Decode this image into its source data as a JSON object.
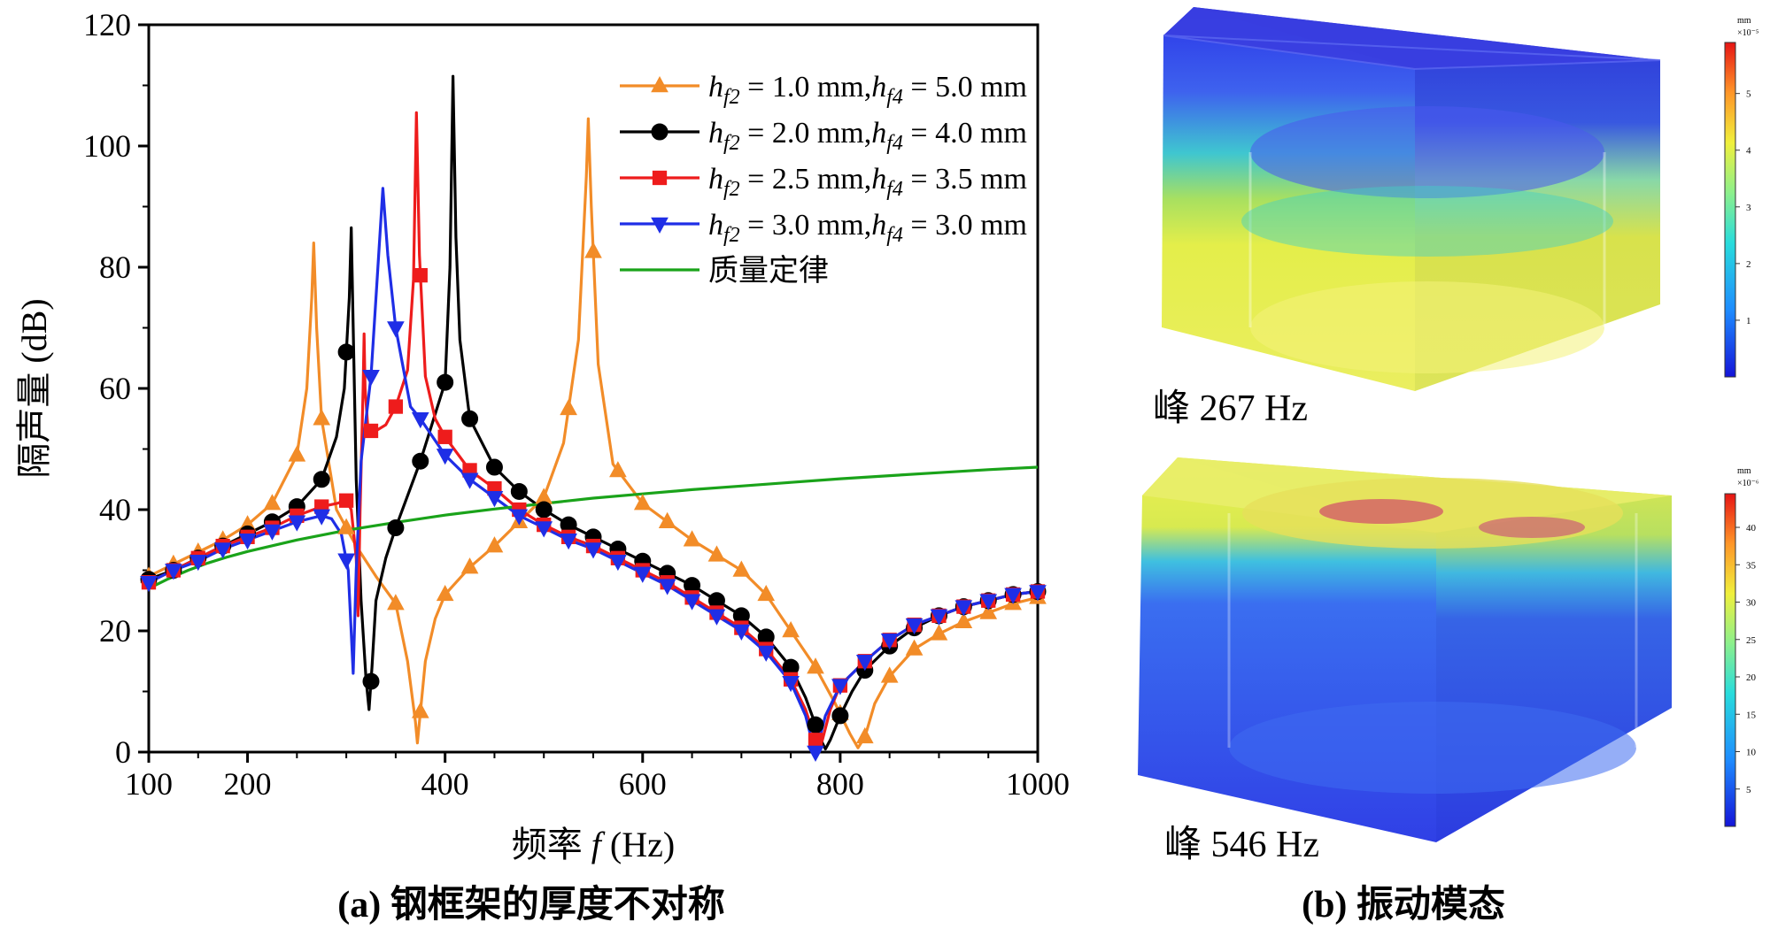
{
  "panel_a": {
    "caption": "(a) 钢框架的厚度不对称"
  },
  "panel_b": {
    "caption": "(b) 振动模态",
    "modes": [
      {
        "label": "峰 267 Hz",
        "colorbar_unit": "mm",
        "colorbar_exponent": "×10⁻⁵",
        "colorbar_ticks": [
          "1",
          "2",
          "3",
          "4",
          "5"
        ]
      },
      {
        "label": "峰 546 Hz",
        "colorbar_unit": "mm",
        "colorbar_exponent": "×10⁻⁶",
        "colorbar_ticks": [
          "5",
          "10",
          "15",
          "20",
          "25",
          "30",
          "35",
          "40"
        ]
      }
    ]
  },
  "chart_data": {
    "type": "line",
    "title": "",
    "xlabel_prefix": "频率 ",
    "xlabel_var": "f",
    "xlabel_suffix": " (Hz)",
    "ylabel": "隔声量 (dB)",
    "xlim": [
      100,
      1000
    ],
    "ylim": [
      0,
      120
    ],
    "xticks": [
      100,
      200,
      400,
      600,
      800,
      1000
    ],
    "yticks": [
      0,
      20,
      40,
      60,
      80,
      100,
      120
    ],
    "grid": false,
    "legend_position": "top-right",
    "series": [
      {
        "name": "hf2 = 1.0 mm, hf4 = 5.0 mm",
        "legend": {
          "a": "1.0",
          "b": "5.0"
        },
        "color": "#f28c28",
        "marker": "triangle-up",
        "points": [
          [
            100,
            29
          ],
          [
            125,
            31
          ],
          [
            150,
            33
          ],
          [
            175,
            35
          ],
          [
            200,
            37.5
          ],
          [
            225,
            41
          ],
          [
            250,
            49
          ],
          [
            260,
            60
          ],
          [
            265,
            75
          ],
          [
            267,
            84
          ],
          [
            270,
            70
          ],
          [
            275,
            55
          ],
          [
            290,
            40
          ],
          [
            310,
            34
          ],
          [
            330,
            29
          ],
          [
            350,
            24.5
          ],
          [
            362,
            15
          ],
          [
            370,
            5
          ],
          [
            372,
            1.5
          ],
          [
            374,
            5
          ],
          [
            380,
            15
          ],
          [
            390,
            22
          ],
          [
            400,
            26
          ],
          [
            425,
            30.5
          ],
          [
            450,
            34
          ],
          [
            475,
            38
          ],
          [
            500,
            42
          ],
          [
            520,
            51
          ],
          [
            535,
            68
          ],
          [
            543,
            95
          ],
          [
            545,
            104.5
          ],
          [
            548,
            90
          ],
          [
            555,
            64
          ],
          [
            570,
            47.5
          ],
          [
            600,
            41
          ],
          [
            625,
            38
          ],
          [
            650,
            35
          ],
          [
            675,
            32.5
          ],
          [
            700,
            30
          ],
          [
            725,
            26
          ],
          [
            750,
            20
          ],
          [
            775,
            14
          ],
          [
            795,
            8
          ],
          [
            810,
            3
          ],
          [
            818,
            0.7
          ],
          [
            825,
            2.5
          ],
          [
            835,
            8
          ],
          [
            850,
            12.5
          ],
          [
            875,
            17
          ],
          [
            900,
            19.5
          ],
          [
            925,
            21.5
          ],
          [
            950,
            23
          ],
          [
            975,
            24.5
          ],
          [
            1000,
            25.5
          ]
        ],
        "marker_x": [
          100,
          125,
          150,
          175,
          200,
          225,
          250,
          275,
          300,
          350,
          375,
          400,
          425,
          450,
          475,
          500,
          525,
          550,
          575,
          600,
          625,
          650,
          675,
          700,
          725,
          750,
          775,
          800,
          825,
          850,
          875,
          900,
          925,
          950,
          975,
          1000
        ]
      },
      {
        "name": "hf2 = 2.0 mm, hf4 = 4.0 mm",
        "legend": {
          "a": "2.0",
          "b": "4.0"
        },
        "color": "#000000",
        "marker": "circle",
        "points": [
          [
            100,
            28.5
          ],
          [
            125,
            30
          ],
          [
            150,
            32
          ],
          [
            175,
            34
          ],
          [
            200,
            36
          ],
          [
            225,
            38
          ],
          [
            250,
            40.5
          ],
          [
            275,
            45
          ],
          [
            290,
            52
          ],
          [
            298,
            60
          ],
          [
            303,
            75
          ],
          [
            305,
            86.5
          ],
          [
            307,
            70
          ],
          [
            310,
            45
          ],
          [
            315,
            25
          ],
          [
            320,
            12
          ],
          [
            323,
            7
          ],
          [
            326,
            14
          ],
          [
            330,
            25
          ],
          [
            340,
            32
          ],
          [
            350,
            37
          ],
          [
            375,
            48
          ],
          [
            400,
            61
          ],
          [
            405,
            80
          ],
          [
            408,
            111.5
          ],
          [
            411,
            85
          ],
          [
            415,
            68
          ],
          [
            425,
            55
          ],
          [
            450,
            47
          ],
          [
            475,
            43
          ],
          [
            500,
            40
          ],
          [
            525,
            37.5
          ],
          [
            550,
            35.5
          ],
          [
            575,
            33.5
          ],
          [
            600,
            31.5
          ],
          [
            625,
            29.5
          ],
          [
            650,
            27.5
          ],
          [
            675,
            25
          ],
          [
            700,
            22.5
          ],
          [
            725,
            19
          ],
          [
            750,
            14
          ],
          [
            765,
            9
          ],
          [
            775,
            4.5
          ],
          [
            782,
            1.5
          ],
          [
            785,
            0.5
          ],
          [
            790,
            2
          ],
          [
            800,
            6
          ],
          [
            812,
            10
          ],
          [
            825,
            13.5
          ],
          [
            850,
            17.5
          ],
          [
            875,
            20.5
          ],
          [
            900,
            22.5
          ],
          [
            925,
            24
          ],
          [
            950,
            25
          ],
          [
            975,
            26
          ],
          [
            1000,
            26.5
          ]
        ],
        "marker_x": [
          100,
          125,
          150,
          175,
          200,
          225,
          250,
          275,
          300,
          325,
          350,
          375,
          400,
          425,
          450,
          475,
          500,
          525,
          550,
          575,
          600,
          625,
          650,
          675,
          700,
          725,
          750,
          775,
          800,
          825,
          850,
          875,
          900,
          925,
          950,
          975,
          1000
        ]
      },
      {
        "name": "hf2 = 2.5 mm, hf4 = 3.5 mm",
        "legend": {
          "a": "2.5",
          "b": "3.5"
        },
        "color": "#ee1c1c",
        "marker": "square",
        "points": [
          [
            100,
            28
          ],
          [
            125,
            30
          ],
          [
            150,
            32
          ],
          [
            175,
            34
          ],
          [
            200,
            35.5
          ],
          [
            225,
            37
          ],
          [
            250,
            39
          ],
          [
            275,
            40.5
          ],
          [
            290,
            41
          ],
          [
            300,
            41.5
          ],
          [
            305,
            40
          ],
          [
            310,
            32
          ],
          [
            312,
            22.5
          ],
          [
            314,
            40
          ],
          [
            317,
            60
          ],
          [
            318,
            69
          ],
          [
            319,
            60
          ],
          [
            322,
            53
          ],
          [
            330,
            53
          ],
          [
            340,
            54
          ],
          [
            350,
            57
          ],
          [
            362,
            63
          ],
          [
            368,
            78
          ],
          [
            371,
            105.5
          ],
          [
            374,
            82
          ],
          [
            380,
            62
          ],
          [
            390,
            55
          ],
          [
            400,
            52
          ],
          [
            425,
            46.5
          ],
          [
            450,
            43.5
          ],
          [
            475,
            40
          ],
          [
            500,
            37.5
          ],
          [
            525,
            35.5
          ],
          [
            550,
            34
          ],
          [
            575,
            32
          ],
          [
            600,
            30
          ],
          [
            625,
            28
          ],
          [
            650,
            25.5
          ],
          [
            675,
            23
          ],
          [
            700,
            20.5
          ],
          [
            725,
            17
          ],
          [
            750,
            12
          ],
          [
            765,
            7
          ],
          [
            775,
            2
          ],
          [
            778,
            0.5
          ],
          [
            782,
            2
          ],
          [
            790,
            7
          ],
          [
            800,
            11
          ],
          [
            825,
            15
          ],
          [
            850,
            18.5
          ],
          [
            875,
            21
          ],
          [
            900,
            22.5
          ],
          [
            925,
            24
          ],
          [
            950,
            25
          ],
          [
            975,
            26
          ],
          [
            1000,
            26.5
          ]
        ],
        "marker_x": [
          100,
          125,
          150,
          175,
          200,
          225,
          250,
          275,
          300,
          325,
          350,
          375,
          400,
          425,
          450,
          475,
          500,
          525,
          550,
          575,
          600,
          625,
          650,
          675,
          700,
          725,
          750,
          775,
          800,
          825,
          850,
          875,
          900,
          925,
          950,
          975,
          1000
        ]
      },
      {
        "name": "hf2 = 3.0 mm, hf4 = 3.0 mm",
        "legend": {
          "a": "3.0",
          "b": "3.0"
        },
        "color": "#1f2ee6",
        "marker": "triangle-down",
        "points": [
          [
            100,
            28
          ],
          [
            125,
            30
          ],
          [
            150,
            31.5
          ],
          [
            175,
            33.5
          ],
          [
            200,
            35
          ],
          [
            225,
            36.5
          ],
          [
            250,
            38
          ],
          [
            275,
            39
          ],
          [
            285,
            38.5
          ],
          [
            295,
            36
          ],
          [
            302,
            30
          ],
          [
            307,
            13
          ],
          [
            310,
            30
          ],
          [
            315,
            48
          ],
          [
            325,
            62
          ],
          [
            332,
            80
          ],
          [
            337,
            93
          ],
          [
            342,
            82
          ],
          [
            350,
            70
          ],
          [
            365,
            57
          ],
          [
            375,
            55
          ],
          [
            400,
            49
          ],
          [
            425,
            45
          ],
          [
            450,
            42
          ],
          [
            475,
            39
          ],
          [
            500,
            37
          ],
          [
            525,
            35
          ],
          [
            550,
            33.5
          ],
          [
            575,
            31.5
          ],
          [
            600,
            29.5
          ],
          [
            625,
            27.5
          ],
          [
            650,
            25
          ],
          [
            675,
            22.5
          ],
          [
            700,
            20
          ],
          [
            725,
            16.5
          ],
          [
            750,
            11.5
          ],
          [
            765,
            6
          ],
          [
            772,
            1.5
          ],
          [
            775,
            0
          ],
          [
            778,
            1.5
          ],
          [
            785,
            6
          ],
          [
            800,
            11
          ],
          [
            825,
            15
          ],
          [
            850,
            18.5
          ],
          [
            875,
            21
          ],
          [
            900,
            22.5
          ],
          [
            925,
            24
          ],
          [
            950,
            25
          ],
          [
            975,
            26
          ],
          [
            1000,
            26.5
          ]
        ],
        "marker_x": [
          100,
          125,
          150,
          175,
          200,
          225,
          250,
          275,
          300,
          325,
          350,
          375,
          400,
          425,
          450,
          475,
          500,
          525,
          550,
          575,
          600,
          625,
          650,
          675,
          700,
          725,
          750,
          775,
          800,
          825,
          850,
          875,
          900,
          925,
          950,
          975,
          1000
        ]
      },
      {
        "name": "质量定律",
        "color": "#1aa31a",
        "marker": "none",
        "points": [
          [
            100,
            27
          ],
          [
            120,
            28.6
          ],
          [
            140,
            30
          ],
          [
            160,
            31.2
          ],
          [
            180,
            32.2
          ],
          [
            200,
            33.1
          ],
          [
            250,
            35
          ],
          [
            300,
            36.6
          ],
          [
            350,
            37.9
          ],
          [
            400,
            39.1
          ],
          [
            450,
            40.1
          ],
          [
            500,
            41
          ],
          [
            550,
            41.9
          ],
          [
            600,
            42.6
          ],
          [
            650,
            43.3
          ],
          [
            700,
            43.9
          ],
          [
            750,
            44.5
          ],
          [
            800,
            45.1
          ],
          [
            850,
            45.6
          ],
          [
            900,
            46.1
          ],
          [
            950,
            46.6
          ],
          [
            1000,
            47
          ]
        ]
      }
    ]
  }
}
